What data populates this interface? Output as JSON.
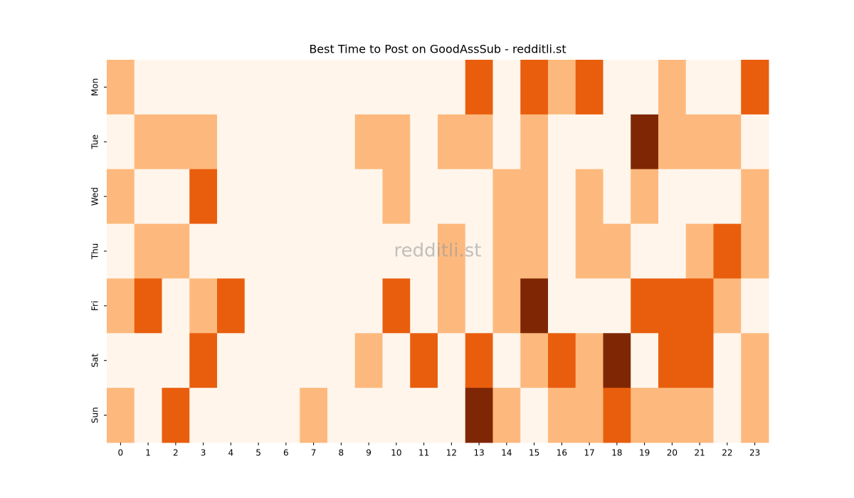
{
  "chart_data": {
    "type": "heatmap",
    "title": "Best Time to Post on GoodAssSub - redditli.st",
    "watermark": "redditli.st",
    "x": [
      0,
      1,
      2,
      3,
      4,
      5,
      6,
      7,
      8,
      9,
      10,
      11,
      12,
      13,
      14,
      15,
      16,
      17,
      18,
      19,
      20,
      21,
      22,
      23
    ],
    "y": [
      "Mon",
      "Tue",
      "Wed",
      "Thu",
      "Fri",
      "Sat",
      "Sun"
    ],
    "z": [
      [
        1,
        0,
        0,
        0,
        0,
        0,
        0,
        0,
        0,
        0,
        0,
        0,
        0,
        2,
        0,
        2,
        1,
        2,
        0,
        0,
        1,
        0,
        0,
        2
      ],
      [
        0,
        1,
        1,
        1,
        0,
        0,
        0,
        0,
        0,
        1,
        1,
        0,
        1,
        1,
        0,
        1,
        0,
        0,
        0,
        3,
        1,
        1,
        1,
        0
      ],
      [
        1,
        0,
        0,
        2,
        0,
        0,
        0,
        0,
        0,
        0,
        1,
        0,
        0,
        0,
        1,
        1,
        0,
        1,
        0,
        1,
        0,
        0,
        0,
        1
      ],
      [
        0,
        1,
        1,
        0,
        0,
        0,
        0,
        0,
        0,
        0,
        0,
        0,
        1,
        0,
        1,
        1,
        0,
        1,
        1,
        0,
        0,
        1,
        2,
        1
      ],
      [
        1,
        2,
        0,
        1,
        2,
        0,
        0,
        0,
        0,
        0,
        2,
        0,
        1,
        0,
        1,
        3,
        0,
        0,
        0,
        2,
        2,
        2,
        1,
        0
      ],
      [
        0,
        0,
        0,
        2,
        0,
        0,
        0,
        0,
        0,
        1,
        0,
        2,
        0,
        2,
        0,
        1,
        2,
        1,
        3,
        0,
        2,
        2,
        0,
        1
      ],
      [
        1,
        0,
        2,
        0,
        0,
        0,
        0,
        1,
        0,
        0,
        0,
        0,
        0,
        3,
        1,
        0,
        1,
        1,
        2,
        1,
        1,
        1,
        0,
        1
      ]
    ],
    "zlim": [
      0,
      3
    ],
    "colormap": [
      "#fff5eb",
      "#fdb97d",
      "#e95e0d",
      "#7f2704"
    ]
  }
}
